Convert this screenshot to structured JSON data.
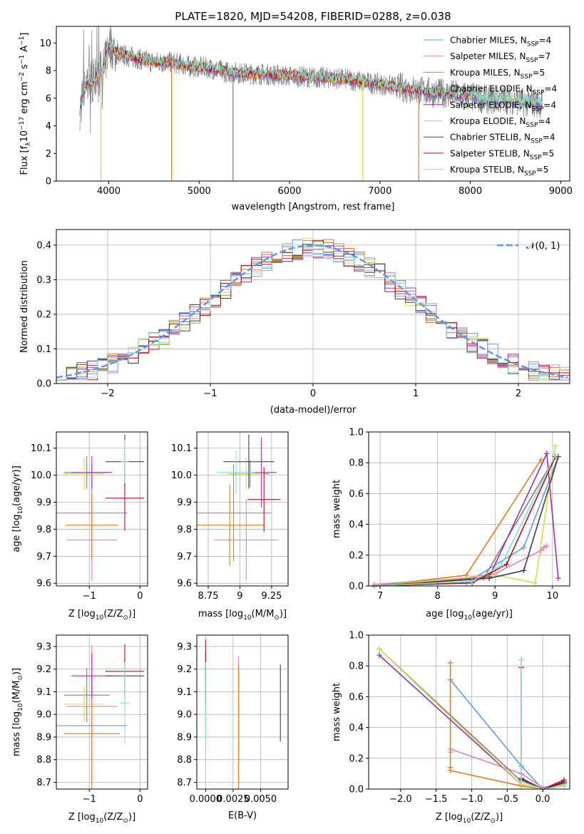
{
  "figure": {
    "title": "PLATE=1820, MJD=54208, FIBERID=0288, z=0.038",
    "colors": {
      "blue": "#6495ed",
      "pink": "#e87fb8",
      "orange": "#e07b20",
      "grey": "#808080",
      "purple": "#9b2fb0",
      "yellow": "#c8e050",
      "dark": "#404040",
      "red": "#b21010",
      "cyan": "#80dede"
    }
  },
  "chart_data": [
    {
      "id": "spectrum",
      "type": "line",
      "title": "PLATE=1820, MJD=54208, FIBERID=0288, z=0.038",
      "xlabel": "wavelength [Angstrom, rest frame]",
      "ylabel": "Flux [f",
      "ylabel_sub": "λ",
      "ylabel_rest": "10",
      "ylabel_exp": "−17",
      "ylabel_tail": " erg cm",
      "ylabel_exp2": "−2",
      "ylabel_tail2": " s",
      "ylabel_exp3": "−1",
      "ylabel_tail3": " A",
      "ylabel_exp4": "−1",
      "ylabel_end": "]",
      "xlim": [
        3420,
        9100
      ],
      "ylim": [
        0,
        11.2
      ],
      "xticks": [
        4000,
        5000,
        6000,
        7000,
        8000,
        9000
      ],
      "yticks": [
        0,
        2,
        4,
        6,
        8,
        10
      ],
      "legend": [
        {
          "label": "Chabrier MILES, N",
          "sub": "SSP",
          "val": "=4",
          "color": "#6495ed"
        },
        {
          "label": "Salpeter MILES, N",
          "sub": "SSP",
          "val": "=7",
          "color": "#e87fb8"
        },
        {
          "label": "Kroupa MILES, N",
          "sub": "SSP",
          "val": "=5",
          "color": "#e07b20"
        },
        {
          "label": "Chabrier ELODIE, N",
          "sub": "SSP",
          "val": "=4",
          "color": "#808080"
        },
        {
          "label": "Salpeter ELODIE, N",
          "sub": "SSP",
          "val": "=4",
          "color": "#9b2fb0"
        },
        {
          "label": "Kroupa ELODIE, N",
          "sub": "SSP",
          "val": "=4",
          "color": "#c8e050"
        },
        {
          "label": "Chabrier STELIB, N",
          "sub": "SSP",
          "val": "=4",
          "color": "#404040"
        },
        {
          "label": "Salpeter STELIB, N",
          "sub": "SSP",
          "val": "=5",
          "color": "#b21010"
        },
        {
          "label": "Kroupa STELIB, N",
          "sub": "SSP",
          "val": "=5",
          "color": "#80dede"
        }
      ],
      "data_envelope": {
        "x": [
          3680,
          3750,
          3850,
          3950,
          4000,
          4100,
          4300,
          4500,
          4700,
          4900,
          5100,
          5300,
          5500,
          5800,
          6000,
          6300,
          6600,
          6800,
          7000,
          7200,
          7400,
          7600,
          7800,
          8000,
          8200,
          8400,
          8600,
          8800
        ],
        "y": [
          5.2,
          7.0,
          7.3,
          8.2,
          9.9,
          9.2,
          8.9,
          8.6,
          8.6,
          8.3,
          8.2,
          7.9,
          7.8,
          7.7,
          7.6,
          7.5,
          7.4,
          7.2,
          7.0,
          6.8,
          6.6,
          6.4,
          6.3,
          6.1,
          5.9,
          5.9,
          5.7,
          5.6
        ]
      },
      "dropouts": [
        {
          "x": 3915,
          "color": "#c8e050"
        },
        {
          "x": 4695,
          "color": "#e07b20"
        },
        {
          "x": 5375,
          "color": "#808080"
        },
        {
          "x": 6810,
          "color": "#c8e050"
        },
        {
          "x": 7430,
          "color": "#e07b20"
        }
      ]
    },
    {
      "id": "residuals",
      "type": "bar",
      "xlabel": "(data-model)/error",
      "ylabel": "Normed distribution",
      "xlim": [
        -2.5,
        2.5
      ],
      "ylim": [
        0,
        0.445
      ],
      "xticks": [
        -2,
        -1,
        0,
        1,
        2
      ],
      "yticks": [
        0.0,
        0.1,
        0.2,
        0.3,
        0.4
      ],
      "bin_width": 0.1,
      "legend": [
        {
          "label": "𝒩(0, 1)",
          "color": "#6495ed"
        }
      ],
      "gaussian": {
        "mu": 0,
        "sigma": 1,
        "color": "#6495ed"
      }
    },
    {
      "id": "age-vs-Z",
      "type": "scatter",
      "xlabel": "Z [log",
      "xlabel_sub": "10",
      "xlabel_rest": "(Z/Z",
      "xlabel_sub2": "⊙",
      "xlabel_end": ")]",
      "ylabel": "age  [log",
      "ylabel_sub": "10",
      "ylabel_end": "(age/yr)]",
      "xlim": [
        -1.65,
        0.15
      ],
      "ylim": [
        9.59,
        10.16
      ],
      "xticks": [
        -1,
        0
      ],
      "yticks": [
        9.6,
        9.7,
        9.8,
        9.9,
        10.0,
        10.1
      ],
      "points": [
        {
          "x": -0.95,
          "xerr": 0.7,
          "y": 9.86,
          "yerr": 0.18,
          "color": "#6495ed"
        },
        {
          "x": -0.95,
          "xerr": 0.5,
          "y": 9.76,
          "yerr": 0.15,
          "color": "#e87fb8"
        },
        {
          "x": -0.95,
          "xerr": 0.52,
          "y": 9.815,
          "yerr": 0.12,
          "color": "#e07b20"
        },
        {
          "x": -1.05,
          "xerr": 0.45,
          "y": 10.01,
          "yerr": 0.06,
          "color": "#808080"
        },
        {
          "x": -0.95,
          "xerr": 0.4,
          "y": 10.01,
          "yerr": 0.06,
          "color": "#9b2fb0"
        },
        {
          "x": -1.1,
          "xerr": 0.4,
          "y": 10.005,
          "yerr": 0.06,
          "color": "#c8e050"
        },
        {
          "x": -0.3,
          "xerr": 0.38,
          "y": 10.05,
          "yerr": 0.1,
          "color": "#404040"
        },
        {
          "x": -0.3,
          "xerr": 0.38,
          "y": 9.915,
          "yerr": 0.12,
          "color": "#b21010"
        },
        {
          "x": -0.3,
          "xerr": 0.08,
          "y": 10.05,
          "yerr": 0.08,
          "color": "#80dede"
        }
      ]
    },
    {
      "id": "age-vs-mass",
      "type": "scatter",
      "xlabel": "mass [log",
      "xlabel_sub": "10",
      "xlabel_rest": "(M/M",
      "xlabel_sub2": "⊙",
      "xlabel_end": ")]",
      "ylabel": "",
      "xlim": [
        8.66,
        9.38
      ],
      "ylim": [
        9.59,
        10.16
      ],
      "xticks": [
        8.75,
        9.0,
        9.25
      ],
      "yticks": [
        9.6,
        9.7,
        9.8,
        9.9,
        10.0,
        10.1
      ],
      "points": [
        {
          "x": 8.95,
          "xerr": 0.3,
          "y": 9.86,
          "yerr": 0.18,
          "color": "#6495ed"
        },
        {
          "x": 9.05,
          "xerr": 0.25,
          "y": 9.76,
          "yerr": 0.15,
          "color": "#e87fb8"
        },
        {
          "x": 8.92,
          "xerr": 0.27,
          "y": 9.815,
          "yerr": 0.15,
          "color": "#e07b20"
        },
        {
          "x": 9.08,
          "xerr": 0.15,
          "y": 10.005,
          "yerr": 0.05,
          "color": "#808080"
        },
        {
          "x": 9.17,
          "xerr": 0.12,
          "y": 10.01,
          "yerr": 0.13,
          "color": "#9b2fb0"
        },
        {
          "x": 9.05,
          "xerr": 0.15,
          "y": 10.005,
          "yerr": 0.06,
          "color": "#c8e050"
        },
        {
          "x": 9.07,
          "xerr": 0.2,
          "y": 10.05,
          "yerr": 0.1,
          "color": "#404040"
        },
        {
          "x": 9.19,
          "xerr": 0.13,
          "y": 9.91,
          "yerr": 0.12,
          "color": "#b21010"
        },
        {
          "x": 8.97,
          "xerr": 0.15,
          "y": 10.01,
          "yerr": 0.08,
          "color": "#80dede"
        }
      ]
    },
    {
      "id": "weight-vs-age",
      "type": "line",
      "xlabel": "age  [log",
      "xlabel_sub": "10",
      "xlabel_end": "(age/yr)]",
      "ylabel": "mass weight",
      "xlim": [
        6.8,
        10.3
      ],
      "ylim": [
        0,
        1.0
      ],
      "xticks": [
        7,
        8,
        9,
        10
      ],
      "yticks": [
        0.0,
        0.2,
        0.4,
        0.6,
        0.8,
        1.0
      ],
      "series": [
        {
          "color": "#6495ed",
          "x": [
            6.9,
            8.5,
            9.5,
            10.1
          ],
          "y": [
            0.0,
            0.02,
            0.25,
            0.84
          ]
        },
        {
          "color": "#e87fb8",
          "x": [
            6.9,
            8.4,
            9.0,
            9.8,
            9.85,
            9.9
          ],
          "y": [
            0.01,
            0.05,
            0.08,
            0.23,
            0.25,
            0.26
          ]
        },
        {
          "color": "#e07b20",
          "x": [
            6.9,
            8.5,
            9.8
          ],
          "y": [
            0.0,
            0.07,
            0.82
          ]
        },
        {
          "color": "#808080",
          "x": [
            6.9,
            8.8,
            10.05
          ],
          "y": [
            0.0,
            0.05,
            0.84
          ]
        },
        {
          "color": "#9b2fb0",
          "x": [
            6.9,
            8.9,
            9.9,
            10.1
          ],
          "y": [
            0.0,
            0.06,
            0.86,
            0.05
          ]
        },
        {
          "color": "#c8e050",
          "x": [
            6.9,
            9.0,
            9.7,
            10.05
          ],
          "y": [
            0.0,
            0.07,
            0.02,
            0.91
          ]
        },
        {
          "color": "#404040",
          "x": [
            6.9,
            8.9,
            9.5,
            10.1
          ],
          "y": [
            0.0,
            0.05,
            0.1,
            0.84
          ]
        },
        {
          "color": "#b21010",
          "x": [
            6.9,
            8.6,
            9.2,
            10.05
          ],
          "y": [
            0.0,
            0.02,
            0.14,
            0.84
          ]
        },
        {
          "color": "#80dede",
          "x": [
            6.9,
            8.6,
            9.1,
            10.05
          ],
          "y": [
            0.0,
            0.03,
            0.13,
            0.85
          ]
        }
      ]
    },
    {
      "id": "mass-vs-Z",
      "type": "scatter",
      "xlabel": "Z [log",
      "xlabel_sub": "10",
      "xlabel_rest": "(Z/Z",
      "xlabel_sub2": "⊙",
      "xlabel_end": ")]",
      "ylabel": "mass [log",
      "ylabel_sub": "10",
      "ylabel_rest": "(M/M",
      "ylabel_sub2": "⊙",
      "ylabel_end": ")]",
      "xlim": [
        -1.65,
        0.15
      ],
      "ylim": [
        8.67,
        9.35
      ],
      "xticks": [
        -1,
        0
      ],
      "yticks": [
        8.7,
        8.8,
        8.9,
        9.0,
        9.1,
        9.2,
        9.3
      ],
      "points": [
        {
          "x": -0.95,
          "xerr": 0.7,
          "y": 8.95,
          "yerr": 0.25,
          "color": "#6495ed"
        },
        {
          "x": -0.95,
          "xerr": 0.5,
          "y": 9.035,
          "yerr": 0.27,
          "color": "#e87fb8"
        },
        {
          "x": -0.95,
          "xerr": 0.55,
          "y": 8.915,
          "yerr": 0.25,
          "color": "#e07b20"
        },
        {
          "x": -1.05,
          "xerr": 0.45,
          "y": 9.085,
          "yerr": 0.12,
          "color": "#808080"
        },
        {
          "x": -0.95,
          "xerr": 0.4,
          "y": 9.17,
          "yerr": 0.1,
          "color": "#9b2fb0"
        },
        {
          "x": -1.1,
          "xerr": 0.4,
          "y": 9.045,
          "yerr": 0.08,
          "color": "#c8e050"
        },
        {
          "x": -0.3,
          "xerr": 0.38,
          "y": 9.17,
          "yerr": 0.08,
          "color": "#404040"
        },
        {
          "x": -0.3,
          "xerr": 0.38,
          "y": 9.19,
          "yerr": 0.12,
          "color": "#b21010"
        },
        {
          "x": -0.3,
          "xerr": 0.08,
          "y": 9.05,
          "yerr": 0.18,
          "color": "#80dede"
        }
      ]
    },
    {
      "id": "mass-vs-ebv",
      "type": "scatter",
      "xlabel": "E(B-V)",
      "ylabel": "",
      "xlim": [
        -0.0008,
        0.0075
      ],
      "ylim": [
        8.67,
        9.35
      ],
      "xticks": [
        0.0,
        0.0025,
        0.005
      ],
      "xticklabels": [
        "0.0000",
        "0.0025",
        "0.0050"
      ],
      "yticks": [
        8.7,
        8.8,
        8.9,
        9.0,
        9.1,
        9.2,
        9.3
      ],
      "points": [
        {
          "x": 0.003,
          "y": 8.95,
          "yerr": 0.25,
          "color": "#6495ed"
        },
        {
          "x": 0.003,
          "y": 9.035,
          "yerr": 0.22,
          "color": "#e87fb8"
        },
        {
          "x": 0.003,
          "y": 8.915,
          "yerr": 0.3,
          "color": "#e07b20"
        },
        {
          "x": 0.0,
          "y": 9.085,
          "yerr": 0.12,
          "color": "#808080"
        },
        {
          "x": 0.0,
          "y": 9.17,
          "yerr": 0.1,
          "color": "#9b2fb0"
        },
        {
          "x": 0.0,
          "y": 9.045,
          "yerr": 0.1,
          "color": "#c8e050"
        },
        {
          "x": 0.0068,
          "y": 9.05,
          "yerr": 0.17,
          "color": "#404040"
        },
        {
          "x": 0.0,
          "y": 9.19,
          "yerr": 0.14,
          "color": "#b21010"
        },
        {
          "x": 0.0,
          "y": 9.05,
          "yerr": 0.18,
          "color": "#80dede"
        }
      ]
    },
    {
      "id": "weight-vs-Z",
      "type": "line",
      "xlabel": "Z [log",
      "xlabel_sub": "10",
      "xlabel_rest": "(Z/Z",
      "xlabel_sub2": "⊙",
      "xlabel_end": ")]",
      "ylabel": "mass weight",
      "xlim": [
        -2.45,
        0.38
      ],
      "ylim": [
        0,
        1.0
      ],
      "xticks": [
        -2.0,
        -1.5,
        -1.0,
        -0.5,
        0.0
      ],
      "xticklabels": [
        "−2.0",
        "−1.5",
        "−1.0",
        "−0.5",
        "0.0"
      ],
      "yticks": [
        0.0,
        0.2,
        0.4,
        0.6,
        0.8,
        1.0
      ],
      "series": [
        {
          "color": "#6495ed",
          "x": [
            -1.3,
            -0.3,
            0.0,
            0.3
          ],
          "y": [
            0.71,
            0.15,
            0.0,
            0.04
          ]
        },
        {
          "color": "#e87fb8",
          "x": [
            -1.3,
            -1.3,
            -0.3,
            0.0,
            0.3
          ],
          "y": [
            0.24,
            0.26,
            0.1,
            0.01,
            0.03
          ]
        },
        {
          "color": "#e07b20",
          "x": [
            -1.3,
            -1.3,
            -1.3,
            -0.3,
            0.0,
            0.3
          ],
          "y": [
            0.82,
            0.14,
            0.12,
            0.02,
            0.0,
            0.02
          ]
        },
        {
          "color": "#808080",
          "x": [
            -2.3,
            -0.3,
            0.0,
            0.3
          ],
          "y": [
            0.91,
            0.05,
            0.0,
            0.03
          ]
        },
        {
          "color": "#9b2fb0",
          "x": [
            -2.3,
            -0.3,
            0.0,
            0.3
          ],
          "y": [
            0.87,
            0.03,
            0.0,
            0.06
          ]
        },
        {
          "color": "#c8e050",
          "x": [
            -2.3,
            -0.3,
            0.0,
            0.3
          ],
          "y": [
            0.91,
            0.03,
            0.0,
            0.03
          ]
        },
        {
          "color": "#404040",
          "x": [
            -0.3,
            -0.3,
            0.0,
            0.3
          ],
          "y": [
            0.84,
            0.07,
            0.0,
            0.04
          ]
        },
        {
          "color": "#b21010",
          "x": [
            -0.3,
            -0.3,
            0.0,
            0.3
          ],
          "y": [
            0.79,
            0.06,
            0.0,
            0.05
          ]
        },
        {
          "color": "#80dede",
          "x": [
            -0.3,
            -0.3,
            0.0,
            0.3
          ],
          "y": [
            0.84,
            0.05,
            0.0,
            0.02
          ]
        }
      ]
    }
  ]
}
